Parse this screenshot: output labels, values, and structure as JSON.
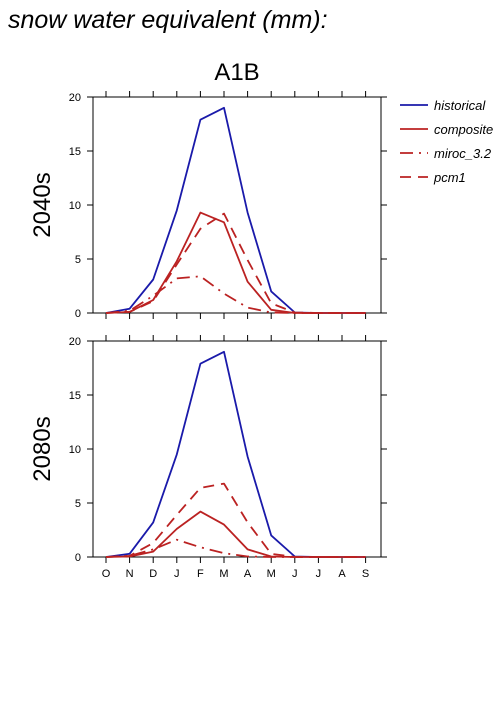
{
  "title": "snow water equivalent (mm):",
  "chart_data": {
    "type": "line",
    "scenario": "A1B",
    "categories": [
      "O",
      "N",
      "D",
      "J",
      "F",
      "M",
      "A",
      "M",
      "J",
      "J",
      "A",
      "S"
    ],
    "ylim": [
      0,
      20
    ],
    "yticks": [
      "0",
      "5",
      "10",
      "15",
      "20"
    ],
    "legend_position": "right",
    "legend": [
      {
        "name": "historical",
        "color": "#1a1aaa",
        "dash": "solid"
      },
      {
        "name": "composite",
        "color": "#bb2222",
        "dash": "solid"
      },
      {
        "name": "miroc_3.2",
        "color": "#bb2222",
        "dash": "dashdot"
      },
      {
        "name": "pcm1",
        "color": "#bb2222",
        "dash": "dashed"
      }
    ],
    "panels": [
      {
        "label": "2040s",
        "series": [
          {
            "name": "historical",
            "values": [
              0,
              0.4,
              3.1,
              9.5,
              17.9,
              19.0,
              9.3,
              2.0,
              0.05,
              0,
              0,
              0
            ]
          },
          {
            "name": "composite",
            "values": [
              0,
              0.1,
              1.2,
              4.8,
              9.3,
              8.4,
              2.9,
              0.3,
              0,
              0,
              0,
              0
            ]
          },
          {
            "name": "miroc_3.2",
            "values": [
              0,
              0.2,
              1.6,
              3.2,
              3.4,
              1.8,
              0.5,
              0.05,
              0,
              0,
              0,
              0
            ]
          },
          {
            "name": "pcm1",
            "values": [
              0,
              0.1,
              1.1,
              4.5,
              7.8,
              9.2,
              4.9,
              0.9,
              0.05,
              0,
              0,
              0
            ]
          }
        ]
      },
      {
        "label": "2080s",
        "series": [
          {
            "name": "historical",
            "values": [
              0,
              0.3,
              3.2,
              9.5,
              17.9,
              19.0,
              9.3,
              2.0,
              0.05,
              0,
              0,
              0
            ]
          },
          {
            "name": "composite",
            "values": [
              0,
              0.05,
              0.5,
              2.6,
              4.2,
              3.0,
              0.7,
              0.05,
              0,
              0,
              0,
              0
            ]
          },
          {
            "name": "miroc_3.2",
            "values": [
              0,
              0.1,
              0.7,
              1.6,
              0.9,
              0.35,
              0.05,
              0,
              0,
              0,
              0,
              0
            ]
          },
          {
            "name": "pcm1",
            "values": [
              0,
              0.1,
              1.3,
              3.9,
              6.4,
              6.8,
              3.2,
              0.3,
              0,
              0,
              0,
              0
            ]
          }
        ]
      }
    ]
  }
}
